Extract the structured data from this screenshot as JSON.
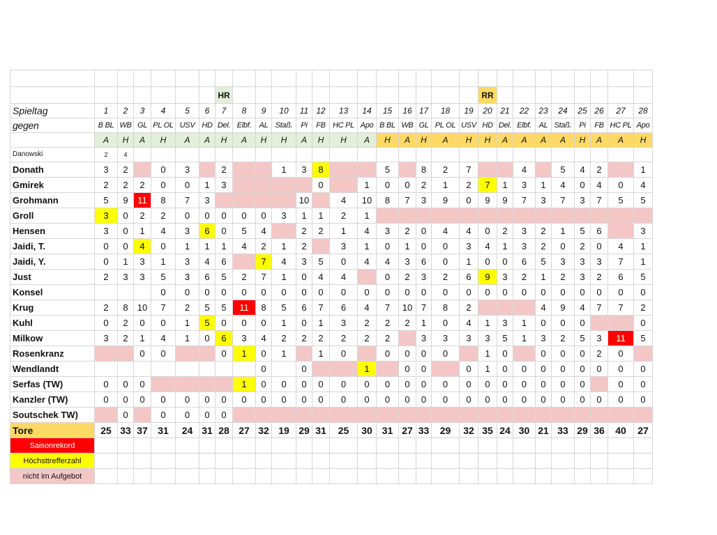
{
  "header": {
    "hr_label": "HR",
    "rr_label": "RR",
    "spieltag_label": "Spieltag",
    "gegen_label": "gegen",
    "danowski_label": "Danowski",
    "danowski_values": [
      "2",
      "4"
    ]
  },
  "matchdays": [
    "1",
    "2",
    "3",
    "4",
    "5",
    "6",
    "7",
    "8",
    "9",
    "10",
    "11",
    "12",
    "13",
    "14",
    "15",
    "16",
    "17",
    "18",
    "19",
    "20",
    "21",
    "22",
    "23",
    "24",
    "25",
    "26",
    "27",
    "28"
  ],
  "opponents": [
    "B BL",
    "WB",
    "GL",
    "PL OL",
    "USV",
    "HD",
    "Del.",
    "Elbf.",
    "AL",
    "Staß.",
    "Pi",
    "FB",
    "HC PL",
    "Apo",
    "B BL",
    "WB",
    "GL",
    "PL OL",
    "USV",
    "HD",
    "Del.",
    "Elbf.",
    "AL",
    "Staß.",
    "Pi",
    "FB",
    "HC PL",
    "Apo"
  ],
  "home_away": [
    "A",
    "H",
    "A",
    "H",
    "A",
    "A",
    "H",
    "A",
    "H",
    "H",
    "A",
    "H",
    "H",
    "A",
    "H",
    "A",
    "H",
    "A",
    "H",
    "H",
    "A",
    "A",
    "A",
    "A",
    "H",
    "A",
    "A",
    "H"
  ],
  "players": [
    {
      "name": "Donath",
      "cells": [
        "3",
        "2",
        "x",
        "0",
        "3",
        "x",
        "2",
        "x",
        "x",
        "1",
        "3",
        "8",
        "x",
        "x",
        "5",
        "x",
        "8",
        "2",
        "7",
        "x",
        "x",
        "4",
        "x",
        "5",
        "4",
        "2",
        "x",
        "1"
      ]
    },
    {
      "name": "Gmirek",
      "cells": [
        "2",
        "2",
        "2",
        "0",
        "0",
        "1",
        "3",
        "x",
        "x",
        "x",
        "x",
        "0",
        "x",
        "1",
        "0",
        "0",
        "2",
        "1",
        "2",
        "7",
        "1",
        "3",
        "1",
        "4",
        "0",
        "4",
        "0",
        "4"
      ]
    },
    {
      "name": "Grohmann",
      "cells": [
        "5",
        "9",
        "11",
        "8",
        "7",
        "3",
        "x",
        "x",
        "x",
        "x",
        "10",
        "x",
        "4",
        "10",
        "8",
        "7",
        "3",
        "9",
        "0",
        "9",
        "9",
        "7",
        "3",
        "7",
        "3",
        "7",
        "5",
        "5"
      ]
    },
    {
      "name": "Groll",
      "cells": [
        "3",
        "0",
        "2",
        "2",
        "0",
        "0",
        "0",
        "0",
        "0",
        "3",
        "1",
        "1",
        "2",
        "1",
        "x",
        "x",
        "x",
        "x",
        "x",
        "x",
        "x",
        "x",
        "x",
        "x",
        "x",
        "x",
        "x",
        "x"
      ]
    },
    {
      "name": "Hensen",
      "cells": [
        "3",
        "0",
        "1",
        "4",
        "3",
        "6",
        "0",
        "5",
        "4",
        "x",
        "2",
        "2",
        "1",
        "4",
        "3",
        "2",
        "0",
        "4",
        "4",
        "0",
        "2",
        "3",
        "2",
        "1",
        "5",
        "6",
        "x",
        "3"
      ]
    },
    {
      "name": "Jaidi, T.",
      "cells": [
        "0",
        "0",
        "4",
        "0",
        "1",
        "1",
        "1",
        "4",
        "2",
        "1",
        "2",
        "x",
        "3",
        "1",
        "0",
        "1",
        "0",
        "0",
        "3",
        "4",
        "1",
        "3",
        "2",
        "0",
        "2",
        "0",
        "4",
        "1"
      ]
    },
    {
      "name": "Jaidi, Y.",
      "cells": [
        "0",
        "1",
        "3",
        "1",
        "3",
        "4",
        "6",
        "x",
        "7",
        "4",
        "3",
        "5",
        "0",
        "4",
        "4",
        "3",
        "6",
        "0",
        "1",
        "0",
        "0",
        "6",
        "5",
        "3",
        "3",
        "3",
        "7",
        "1"
      ]
    },
    {
      "name": "Just",
      "cells": [
        "2",
        "3",
        "3",
        "5",
        "3",
        "6",
        "5",
        "2",
        "7",
        "1",
        "0",
        "4",
        "4",
        "x",
        "0",
        "2",
        "3",
        "2",
        "6",
        "9",
        "3",
        "2",
        "1",
        "2",
        "3",
        "2",
        "6",
        "5"
      ]
    },
    {
      "name": "Konsel",
      "cells": [
        "",
        "",
        "",
        "0",
        "0",
        "0",
        "0",
        "0",
        "0",
        "0",
        "0",
        "0",
        "0",
        "0",
        "0",
        "0",
        "0",
        "0",
        "0",
        "0",
        "0",
        "0",
        "0",
        "0",
        "0",
        "0",
        "0",
        "0"
      ]
    },
    {
      "name": "Krug",
      "cells": [
        "2",
        "8",
        "10",
        "7",
        "2",
        "5",
        "5",
        "11",
        "8",
        "5",
        "6",
        "7",
        "6",
        "4",
        "7",
        "10",
        "7",
        "8",
        "2",
        "x",
        "x",
        "x",
        "4",
        "9",
        "4",
        "7",
        "7",
        "2"
      ]
    },
    {
      "name": "Kuhl",
      "cells": [
        "0",
        "2",
        "0",
        "0",
        "1",
        "5",
        "0",
        "0",
        "0",
        "1",
        "0",
        "1",
        "3",
        "2",
        "2",
        "2",
        "1",
        "0",
        "4",
        "1",
        "3",
        "1",
        "0",
        "0",
        "0",
        "x",
        "x",
        "0"
      ]
    },
    {
      "name": "Milkow",
      "cells": [
        "3",
        "2",
        "1",
        "4",
        "1",
        "0",
        "6",
        "3",
        "4",
        "2",
        "2",
        "2",
        "2",
        "2",
        "2",
        "x",
        "3",
        "3",
        "3",
        "3",
        "5",
        "1",
        "3",
        "2",
        "5",
        "3",
        "11",
        "5"
      ]
    },
    {
      "name": "Rosenkranz",
      "cells": [
        "x",
        "x",
        "0",
        "0",
        "x",
        "x",
        "0",
        "1",
        "0",
        "1",
        "x",
        "1",
        "0",
        "x",
        "0",
        "0",
        "0",
        "0",
        "x",
        "1",
        "0",
        "x",
        "0",
        "0",
        "0",
        "2",
        "0",
        "x"
      ]
    },
    {
      "name": "Wendlandt",
      "cells": [
        "",
        "",
        "",
        "",
        "",
        "",
        "",
        "",
        "0",
        "",
        "0",
        "x",
        "x",
        "1",
        "x",
        "0",
        "0",
        "x",
        "0",
        "1",
        "0",
        "0",
        "0",
        "0",
        "0",
        "0",
        "0",
        "0"
      ]
    },
    {
      "name": "Serfas (TW)",
      "cells": [
        "0",
        "0",
        "0",
        "x",
        "x",
        "x",
        "x",
        "1",
        "0",
        "0",
        "0",
        "0",
        "0",
        "0",
        "0",
        "0",
        "0",
        "0",
        "0",
        "0",
        "0",
        "0",
        "0",
        "0",
        "0",
        "x",
        "0",
        "0"
      ]
    },
    {
      "name": "Kanzler (TW)",
      "cells": [
        "0",
        "0",
        "0",
        "0",
        "0",
        "0",
        "0",
        "0",
        "0",
        "0",
        "0",
        "0",
        "0",
        "0",
        "0",
        "0",
        "0",
        "0",
        "0",
        "0",
        "0",
        "0",
        "0",
        "0",
        "0",
        "0",
        "0",
        "0"
      ]
    },
    {
      "name": "Soutschek TW)",
      "cells": [
        "x",
        "0",
        "x",
        "0",
        "0",
        "0",
        "0",
        "x",
        "x",
        "x",
        "x",
        "x",
        "x",
        "x",
        "x",
        "x",
        "x",
        "x",
        "x",
        "x",
        "x",
        "x",
        "x",
        "x",
        "x",
        "x",
        "x",
        "x"
      ]
    }
  ],
  "tore": {
    "label": "Tore",
    "values": [
      "25",
      "33",
      "37",
      "31",
      "24",
      "31",
      "28",
      "27",
      "32",
      "19",
      "29",
      "31",
      "25",
      "30",
      "31",
      "27",
      "33",
      "29",
      "32",
      "35",
      "24",
      "30",
      "21",
      "33",
      "29",
      "36",
      "40",
      "27"
    ]
  },
  "highlights": {
    "red": [
      [
        2,
        2
      ],
      [
        9,
        7
      ],
      [
        11,
        26
      ]
    ],
    "yellow": [
      [
        0,
        11
      ],
      [
        1,
        19
      ],
      [
        3,
        0
      ],
      [
        4,
        5
      ],
      [
        5,
        2
      ],
      [
        6,
        8
      ],
      [
        7,
        19
      ],
      [
        10,
        5
      ],
      [
        11,
        6
      ],
      [
        12,
        7
      ],
      [
        13,
        13
      ],
      [
        14,
        7
      ]
    ]
  },
  "legend": {
    "season_record": "Saisonrekord",
    "top_scorer": "Höchsttrefferzahl",
    "not_in_squad": "nicht im Aufgebot"
  },
  "colors": {
    "season_record": "#ff0000",
    "top_scorer": "#ffff00",
    "not_in_squad": "#f4c7c7",
    "home_band": "#e2efd9",
    "away_band": "#ffd966",
    "tore_label_bg": "#ffd966"
  }
}
